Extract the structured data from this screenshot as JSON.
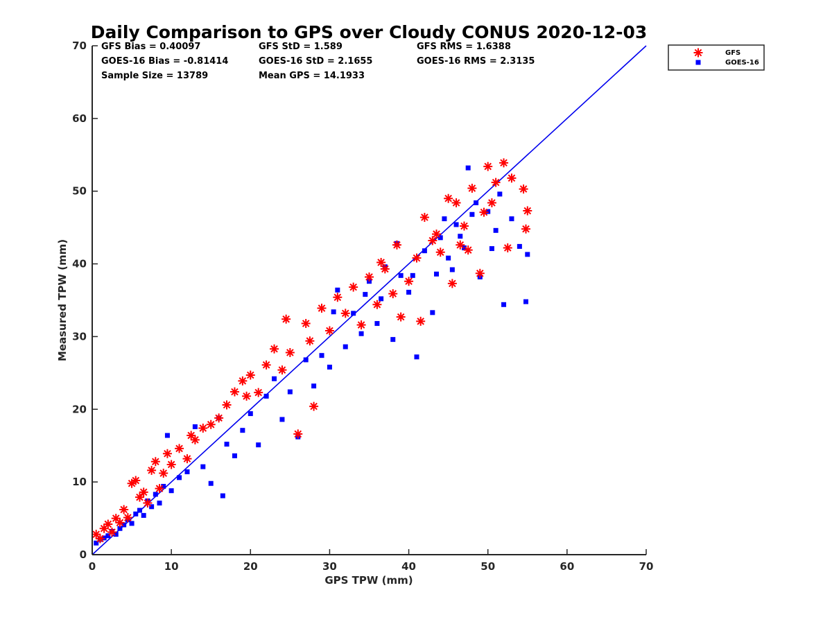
{
  "chart_data": {
    "type": "scatter",
    "title": "Daily Comparison to GPS over Cloudy CONUS 2020-12-03",
    "xlabel": "GPS TPW (mm)",
    "ylabel": "Measured TPW (mm)",
    "xlim": [
      0,
      70
    ],
    "ylim": [
      0,
      70
    ],
    "xticks": [
      "0",
      "10",
      "20",
      "30",
      "40",
      "50",
      "60",
      "70"
    ],
    "yticks": [
      "0",
      "10",
      "20",
      "30",
      "40",
      "50",
      "60",
      "70"
    ],
    "grid": false,
    "legend_position": "outside-top-right",
    "stats": [
      [
        "GFS Bias = 0.40097",
        "GFS StD = 1.589",
        "GFS RMS = 1.6388"
      ],
      [
        "GOES-16 Bias = -0.81414",
        "GOES-16 StD = 2.1655",
        "GOES-16 RMS = 2.3135"
      ],
      [
        "Sample Size = 13789",
        "Mean GPS = 14.1933",
        ""
      ]
    ],
    "reference_line": {
      "x": [
        0,
        70
      ],
      "y": [
        0,
        70
      ],
      "color": "#0000ee"
    },
    "series": [
      {
        "name": "GFS",
        "marker": "asterisk",
        "color": "#ff0000",
        "points": [
          [
            0.5,
            2.8
          ],
          [
            1.0,
            2.2
          ],
          [
            1.5,
            3.6
          ],
          [
            2.0,
            4.2
          ],
          [
            2.5,
            3.1
          ],
          [
            3.0,
            5.0
          ],
          [
            3.5,
            4.4
          ],
          [
            4.0,
            6.2
          ],
          [
            4.5,
            5.1
          ],
          [
            5.0,
            9.8
          ],
          [
            5.5,
            10.2
          ],
          [
            6.0,
            7.9
          ],
          [
            6.5,
            8.6
          ],
          [
            7.0,
            7.1
          ],
          [
            7.5,
            11.6
          ],
          [
            8.0,
            12.8
          ],
          [
            8.5,
            9.1
          ],
          [
            9.0,
            11.2
          ],
          [
            9.5,
            13.9
          ],
          [
            10.0,
            12.4
          ],
          [
            11.0,
            14.6
          ],
          [
            12.0,
            13.2
          ],
          [
            12.5,
            16.4
          ],
          [
            13.0,
            15.8
          ],
          [
            14.0,
            17.4
          ],
          [
            15.0,
            17.9
          ],
          [
            16.0,
            18.8
          ],
          [
            17.0,
            20.6
          ],
          [
            18.0,
            22.4
          ],
          [
            19.0,
            23.9
          ],
          [
            19.5,
            21.8
          ],
          [
            20.0,
            24.7
          ],
          [
            21.0,
            22.3
          ],
          [
            22.0,
            26.1
          ],
          [
            23.0,
            28.3
          ],
          [
            24.0,
            25.4
          ],
          [
            24.5,
            32.4
          ],
          [
            25.0,
            27.8
          ],
          [
            26.0,
            16.6
          ],
          [
            27.0,
            31.8
          ],
          [
            27.5,
            29.4
          ],
          [
            28.0,
            20.4
          ],
          [
            29.0,
            33.9
          ],
          [
            30.0,
            30.8
          ],
          [
            31.0,
            35.4
          ],
          [
            32.0,
            33.2
          ],
          [
            33.0,
            36.8
          ],
          [
            34.0,
            31.6
          ],
          [
            35.0,
            38.2
          ],
          [
            36.0,
            34.4
          ],
          [
            37.0,
            39.3
          ],
          [
            38.0,
            35.9
          ],
          [
            39.0,
            32.7
          ],
          [
            40.0,
            37.6
          ],
          [
            41.0,
            40.8
          ],
          [
            41.5,
            32.1
          ],
          [
            42.0,
            46.4
          ],
          [
            43.0,
            43.2
          ],
          [
            44.0,
            41.6
          ],
          [
            45.0,
            49.0
          ],
          [
            45.5,
            37.3
          ],
          [
            46.0,
            48.4
          ],
          [
            47.0,
            45.2
          ],
          [
            48.0,
            50.4
          ],
          [
            49.0,
            38.7
          ],
          [
            49.5,
            47.1
          ],
          [
            50.0,
            53.4
          ],
          [
            51.0,
            51.2
          ],
          [
            52.0,
            53.9
          ],
          [
            52.5,
            42.2
          ],
          [
            53.0,
            51.8
          ],
          [
            54.5,
            50.3
          ],
          [
            54.8,
            44.8
          ],
          [
            55.0,
            47.3
          ],
          [
            36.5,
            40.2
          ],
          [
            38.5,
            42.6
          ],
          [
            43.5,
            44.1
          ],
          [
            46.5,
            42.6
          ],
          [
            47.5,
            41.9
          ],
          [
            50.5,
            48.4
          ]
        ]
      },
      {
        "name": "GOES-16",
        "marker": "square",
        "color": "#0000ff",
        "points": [
          [
            0.5,
            1.6
          ],
          [
            1.0,
            2.1
          ],
          [
            1.5,
            2.3
          ],
          [
            2.0,
            2.6
          ],
          [
            2.5,
            3.2
          ],
          [
            3.0,
            2.8
          ],
          [
            3.5,
            3.6
          ],
          [
            4.0,
            4.1
          ],
          [
            4.5,
            4.8
          ],
          [
            5.0,
            4.3
          ],
          [
            5.5,
            5.6
          ],
          [
            6.0,
            6.1
          ],
          [
            6.5,
            5.4
          ],
          [
            7.0,
            7.4
          ],
          [
            7.5,
            6.6
          ],
          [
            8.0,
            8.3
          ],
          [
            8.5,
            7.1
          ],
          [
            9.0,
            9.4
          ],
          [
            9.5,
            16.4
          ],
          [
            10.0,
            8.8
          ],
          [
            11.0,
            10.6
          ],
          [
            12.0,
            11.4
          ],
          [
            13.0,
            17.6
          ],
          [
            14.0,
            12.1
          ],
          [
            15.0,
            9.8
          ],
          [
            16.0,
            18.8
          ],
          [
            16.5,
            8.1
          ],
          [
            17.0,
            15.2
          ],
          [
            18.0,
            13.6
          ],
          [
            19.0,
            17.1
          ],
          [
            20.0,
            19.4
          ],
          [
            21.0,
            15.1
          ],
          [
            22.0,
            21.8
          ],
          [
            23.0,
            24.2
          ],
          [
            24.0,
            18.6
          ],
          [
            25.0,
            22.4
          ],
          [
            26.0,
            16.2
          ],
          [
            27.0,
            26.8
          ],
          [
            28.0,
            23.2
          ],
          [
            29.0,
            27.4
          ],
          [
            30.0,
            25.8
          ],
          [
            31.0,
            36.4
          ],
          [
            32.0,
            28.6
          ],
          [
            33.0,
            33.2
          ],
          [
            34.0,
            30.4
          ],
          [
            35.0,
            37.6
          ],
          [
            36.0,
            31.8
          ],
          [
            37.0,
            39.6
          ],
          [
            38.0,
            29.6
          ],
          [
            39.0,
            38.4
          ],
          [
            40.0,
            36.1
          ],
          [
            41.0,
            27.2
          ],
          [
            42.0,
            41.8
          ],
          [
            43.0,
            33.3
          ],
          [
            44.0,
            43.6
          ],
          [
            45.0,
            40.8
          ],
          [
            46.0,
            45.4
          ],
          [
            47.0,
            42.2
          ],
          [
            47.5,
            53.2
          ],
          [
            48.0,
            46.8
          ],
          [
            49.0,
            38.2
          ],
          [
            50.0,
            47.2
          ],
          [
            51.0,
            44.6
          ],
          [
            52.0,
            34.4
          ],
          [
            53.0,
            46.2
          ],
          [
            54.0,
            42.4
          ],
          [
            54.8,
            34.8
          ],
          [
            55.0,
            41.3
          ],
          [
            30.5,
            33.4
          ],
          [
            34.5,
            35.8
          ],
          [
            36.5,
            35.2
          ],
          [
            40.5,
            38.4
          ],
          [
            43.5,
            38.6
          ],
          [
            45.5,
            39.2
          ],
          [
            46.5,
            43.8
          ],
          [
            48.5,
            48.4
          ],
          [
            51.5,
            49.6
          ],
          [
            38.5,
            42.8
          ],
          [
            44.5,
            46.2
          ],
          [
            50.5,
            42.1
          ]
        ]
      }
    ]
  }
}
